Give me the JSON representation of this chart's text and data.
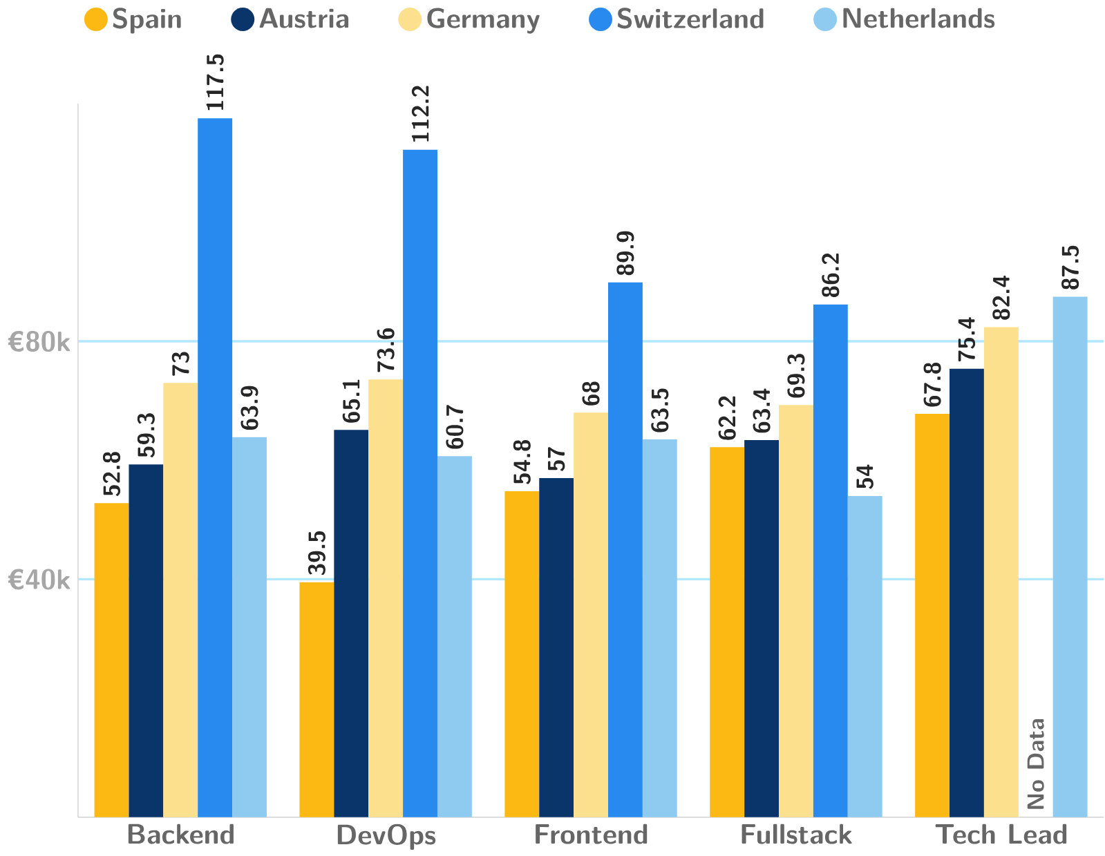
{
  "chart_data": {
    "type": "bar",
    "categories": [
      "Backend",
      "DevOps",
      "Frontend",
      "Fullstack",
      "Tech Lead"
    ],
    "series": [
      {
        "name": "Spain",
        "color": "#fdb913",
        "values": [
          52.8,
          39.5,
          54.8,
          62.2,
          67.8
        ]
      },
      {
        "name": "Austria",
        "color": "#0a356b",
        "values": [
          59.3,
          65.1,
          57,
          63.4,
          75.4
        ]
      },
      {
        "name": "Germany",
        "color": "#fde08e",
        "values": [
          73,
          73.6,
          68,
          69.3,
          82.4
        ]
      },
      {
        "name": "Switzerland",
        "color": "#2889ee",
        "values": [
          117.5,
          112.2,
          89.9,
          86.2,
          null
        ]
      },
      {
        "name": "Netherlands",
        "color": "#8fcbf1",
        "values": [
          63.9,
          60.7,
          63.5,
          54,
          87.5
        ]
      }
    ],
    "ylim": [
      0,
      120
    ],
    "yticks": [
      {
        "value": 40,
        "label": "€40k"
      },
      {
        "value": 80,
        "label": "€80k"
      }
    ],
    "grid": "y",
    "legend": "top",
    "data_labels": true,
    "annotations": [
      "No Data"
    ]
  }
}
